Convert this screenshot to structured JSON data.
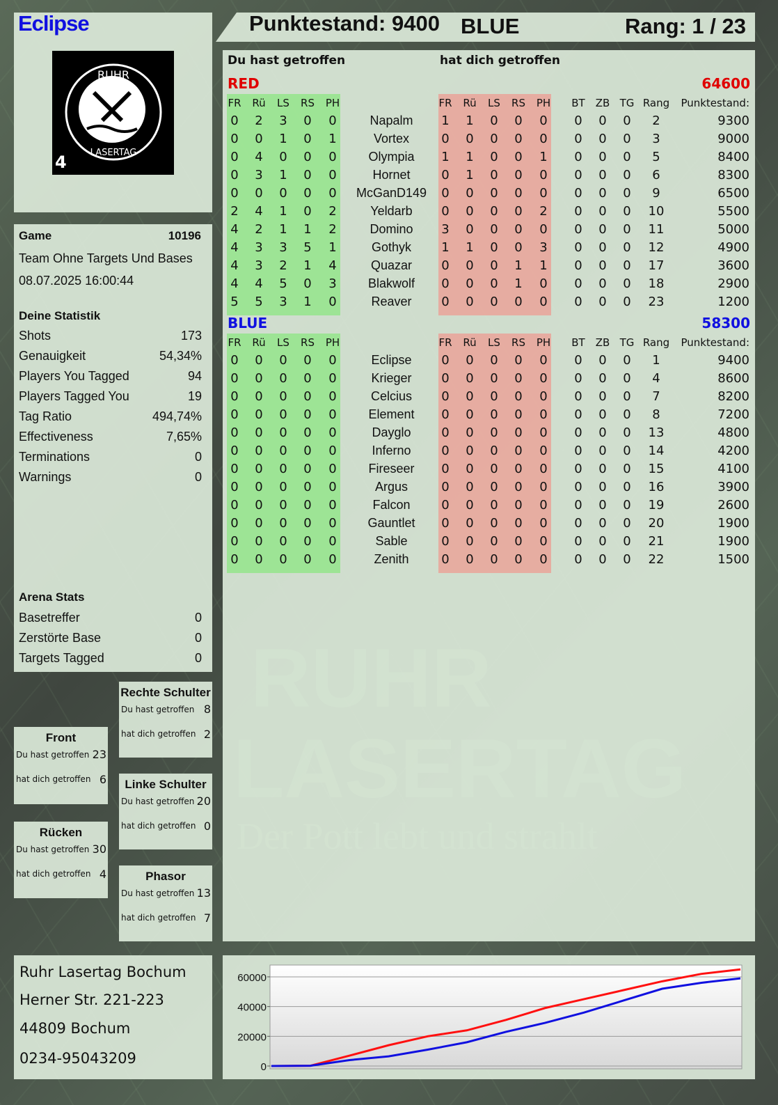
{
  "player": {
    "name": "Eclipse",
    "logo_text_top": "RUHR",
    "logo_text_bottom": "LASERTAG",
    "logo_number": "4"
  },
  "header": {
    "score": "Punktestand: 9400",
    "team": "BLUE",
    "rank": "Rang: 1 / 23"
  },
  "table": {
    "you_hit_label": "Du hast getroffen",
    "hit_you_label": "hat dich getroffen",
    "columns_hit": [
      "FR",
      "Rü",
      "LS",
      "RS",
      "PH"
    ],
    "columns_extra": [
      "BT",
      "ZB",
      "TG",
      "Rang",
      "Punktestand:"
    ],
    "teams": [
      {
        "name": "RED",
        "total": "64600",
        "color": "#e00000",
        "players": [
          {
            "name": "Napalm",
            "hit": [
              0,
              2,
              3,
              0,
              0
            ],
            "got": [
              1,
              1,
              0,
              0,
              0
            ],
            "extra": [
              0,
              0,
              0,
              2,
              9300
            ]
          },
          {
            "name": "Vortex",
            "hit": [
              0,
              0,
              1,
              0,
              1
            ],
            "got": [
              0,
              0,
              0,
              0,
              0
            ],
            "extra": [
              0,
              0,
              0,
              3,
              9000
            ]
          },
          {
            "name": "Olympia",
            "hit": [
              0,
              4,
              0,
              0,
              0
            ],
            "got": [
              1,
              1,
              0,
              0,
              1
            ],
            "extra": [
              0,
              0,
              0,
              5,
              8400
            ]
          },
          {
            "name": "Hornet",
            "hit": [
              0,
              3,
              1,
              0,
              0
            ],
            "got": [
              0,
              1,
              0,
              0,
              0
            ],
            "extra": [
              0,
              0,
              0,
              6,
              8300
            ]
          },
          {
            "name": "McGanD149",
            "hit": [
              0,
              0,
              0,
              0,
              0
            ],
            "got": [
              0,
              0,
              0,
              0,
              0
            ],
            "extra": [
              0,
              0,
              0,
              9,
              6500
            ]
          },
          {
            "name": "Yeldarb",
            "hit": [
              2,
              4,
              1,
              0,
              2
            ],
            "got": [
              0,
              0,
              0,
              0,
              2
            ],
            "extra": [
              0,
              0,
              0,
              10,
              5500
            ]
          },
          {
            "name": "Domino",
            "hit": [
              4,
              2,
              1,
              1,
              2
            ],
            "got": [
              3,
              0,
              0,
              0,
              0
            ],
            "extra": [
              0,
              0,
              0,
              11,
              5000
            ]
          },
          {
            "name": "Gothyk",
            "hit": [
              4,
              3,
              3,
              5,
              1
            ],
            "got": [
              1,
              1,
              0,
              0,
              3
            ],
            "extra": [
              0,
              0,
              0,
              12,
              4900
            ]
          },
          {
            "name": "Quazar",
            "hit": [
              4,
              3,
              2,
              1,
              4
            ],
            "got": [
              0,
              0,
              0,
              1,
              1
            ],
            "extra": [
              0,
              0,
              0,
              17,
              3600
            ]
          },
          {
            "name": "Blakwolf",
            "hit": [
              4,
              4,
              5,
              0,
              3
            ],
            "got": [
              0,
              0,
              0,
              1,
              0
            ],
            "extra": [
              0,
              0,
              0,
              18,
              2900
            ]
          },
          {
            "name": "Reaver",
            "hit": [
              5,
              5,
              3,
              1,
              0
            ],
            "got": [
              0,
              0,
              0,
              0,
              0
            ],
            "extra": [
              0,
              0,
              0,
              23,
              1200
            ]
          }
        ]
      },
      {
        "name": "BLUE",
        "total": "58300",
        "color": "#1010e0",
        "players": [
          {
            "name": "Eclipse",
            "hit": [
              0,
              0,
              0,
              0,
              0
            ],
            "got": [
              0,
              0,
              0,
              0,
              0
            ],
            "extra": [
              0,
              0,
              0,
              1,
              9400
            ]
          },
          {
            "name": "Krieger",
            "hit": [
              0,
              0,
              0,
              0,
              0
            ],
            "got": [
              0,
              0,
              0,
              0,
              0
            ],
            "extra": [
              0,
              0,
              0,
              4,
              8600
            ]
          },
          {
            "name": "Celcius",
            "hit": [
              0,
              0,
              0,
              0,
              0
            ],
            "got": [
              0,
              0,
              0,
              0,
              0
            ],
            "extra": [
              0,
              0,
              0,
              7,
              8200
            ]
          },
          {
            "name": "Element",
            "hit": [
              0,
              0,
              0,
              0,
              0
            ],
            "got": [
              0,
              0,
              0,
              0,
              0
            ],
            "extra": [
              0,
              0,
              0,
              8,
              7200
            ]
          },
          {
            "name": "Dayglo",
            "hit": [
              0,
              0,
              0,
              0,
              0
            ],
            "got": [
              0,
              0,
              0,
              0,
              0
            ],
            "extra": [
              0,
              0,
              0,
              13,
              4800
            ]
          },
          {
            "name": "Inferno",
            "hit": [
              0,
              0,
              0,
              0,
              0
            ],
            "got": [
              0,
              0,
              0,
              0,
              0
            ],
            "extra": [
              0,
              0,
              0,
              14,
              4200
            ]
          },
          {
            "name": "Fireseer",
            "hit": [
              0,
              0,
              0,
              0,
              0
            ],
            "got": [
              0,
              0,
              0,
              0,
              0
            ],
            "extra": [
              0,
              0,
              0,
              15,
              4100
            ]
          },
          {
            "name": "Argus",
            "hit": [
              0,
              0,
              0,
              0,
              0
            ],
            "got": [
              0,
              0,
              0,
              0,
              0
            ],
            "extra": [
              0,
              0,
              0,
              16,
              3900
            ]
          },
          {
            "name": "Falcon",
            "hit": [
              0,
              0,
              0,
              0,
              0
            ],
            "got": [
              0,
              0,
              0,
              0,
              0
            ],
            "extra": [
              0,
              0,
              0,
              19,
              2600
            ]
          },
          {
            "name": "Gauntlet",
            "hit": [
              0,
              0,
              0,
              0,
              0
            ],
            "got": [
              0,
              0,
              0,
              0,
              0
            ],
            "extra": [
              0,
              0,
              0,
              20,
              1900
            ]
          },
          {
            "name": "Sable",
            "hit": [
              0,
              0,
              0,
              0,
              0
            ],
            "got": [
              0,
              0,
              0,
              0,
              0
            ],
            "extra": [
              0,
              0,
              0,
              21,
              1900
            ]
          },
          {
            "name": "Zenith",
            "hit": [
              0,
              0,
              0,
              0,
              0
            ],
            "got": [
              0,
              0,
              0,
              0,
              0
            ],
            "extra": [
              0,
              0,
              0,
              22,
              1500
            ]
          }
        ]
      }
    ]
  },
  "game": {
    "label": "Game",
    "number": "10196",
    "mode": "Team Ohne Targets Und Bases",
    "datetime": "08.07.2025 16:00:44"
  },
  "stats": {
    "title": "Deine Statistik",
    "items": [
      {
        "label": "Shots",
        "value": "173"
      },
      {
        "label": "Genauigkeit",
        "value": "54,34%"
      },
      {
        "label": "Players You Tagged",
        "value": "94"
      },
      {
        "label": "Players Tagged You",
        "value": "19"
      },
      {
        "label": "Tag Ratio",
        "value": "494,74%"
      },
      {
        "label": "Effectiveness",
        "value": "7,65%"
      },
      {
        "label": "Terminations",
        "value": "0"
      },
      {
        "label": "Warnings",
        "value": "0"
      }
    ]
  },
  "arena": {
    "title": "Arena Stats",
    "items": [
      {
        "label": "Basetreffer",
        "value": "0"
      },
      {
        "label": "Zerstörte Base",
        "value": "0"
      },
      {
        "label": "Targets Tagged",
        "value": "0"
      }
    ]
  },
  "zones": {
    "you_hit": "Du hast getroffen",
    "hit_you": "hat dich getroffen",
    "items": [
      {
        "title": "Rechte Schulter",
        "hit": "8",
        "got": "2"
      },
      {
        "title": "Front",
        "hit": "23",
        "got": "6"
      },
      {
        "title": "Linke Schulter",
        "hit": "20",
        "got": "0"
      },
      {
        "title": "Rücken",
        "hit": "30",
        "got": "4"
      },
      {
        "title": "Phasor",
        "hit": "13",
        "got": "7"
      }
    ]
  },
  "address": [
    "Ruhr Lasertag Bochum",
    "Herner Str. 221-223",
    "44809 Bochum",
    "0234-95043209"
  ],
  "watermark": {
    "line1": "RUHR",
    "line2": "LASERTAG",
    "slogan": "Der Pott lebt und strahlt"
  },
  "chart_data": {
    "type": "line",
    "ylim": [
      0,
      67000
    ],
    "yticks": [
      0,
      20000,
      40000,
      60000
    ],
    "grid": true,
    "x": [
      0,
      1,
      2,
      3,
      4,
      5,
      6,
      7,
      8,
      9,
      10,
      11,
      12
    ],
    "series": [
      {
        "color": "#ff1010",
        "values": [
          0,
          200,
          7000,
          14000,
          20000,
          24000,
          31000,
          39000,
          45000,
          51000,
          57000,
          62000,
          65000
        ]
      },
      {
        "color": "#1010e0",
        "values": [
          0,
          200,
          4000,
          6500,
          11000,
          16000,
          23000,
          29000,
          36000,
          44000,
          52000,
          56000,
          59000
        ]
      }
    ]
  }
}
